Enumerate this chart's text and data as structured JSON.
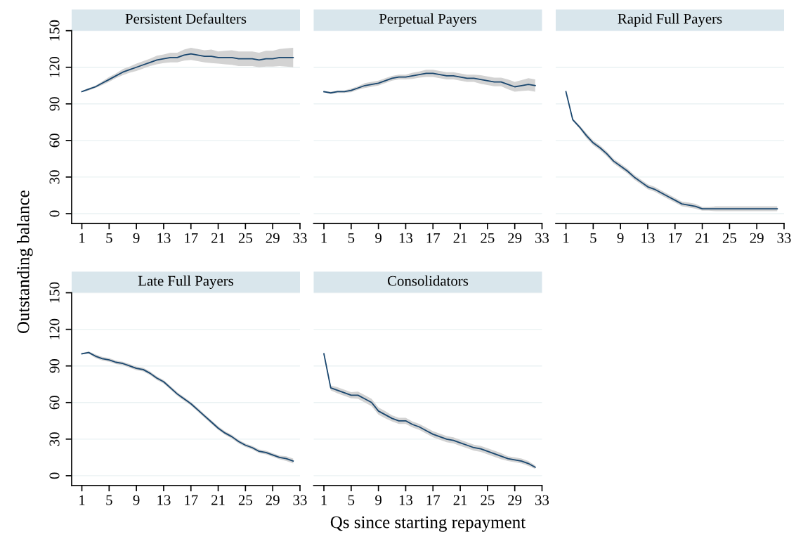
{
  "chart_data": [
    {
      "type": "line",
      "title": "Persistent Defaulters",
      "ylabel": "Outstanding balance",
      "x": [
        1,
        2,
        3,
        4,
        5,
        6,
        7,
        8,
        9,
        10,
        11,
        12,
        13,
        14,
        15,
        16,
        17,
        18,
        19,
        20,
        21,
        22,
        23,
        24,
        25,
        26,
        27,
        28,
        29,
        30,
        31,
        32
      ],
      "xlim": [
        -0.5,
        33
      ],
      "xticks": [
        1,
        5,
        9,
        13,
        17,
        21,
        25,
        29,
        33
      ],
      "ylim": [
        -8,
        150
      ],
      "yticks": [
        0,
        30,
        60,
        90,
        120,
        150
      ],
      "grid": "y",
      "series": [
        {
          "color": "#1a476f",
          "values": [
            100,
            102,
            104,
            107,
            110,
            113,
            116,
            118,
            120,
            122,
            124,
            126,
            127,
            128,
            128,
            130,
            131,
            130,
            129,
            129,
            128,
            128,
            128,
            127,
            127,
            127,
            126,
            127,
            127,
            128,
            128,
            128
          ],
          "lower": [
            99.5,
            101,
            103,
            105.5,
            108,
            111,
            113.5,
            115.5,
            117,
            119,
            121,
            122.5,
            123.5,
            124,
            124,
            125.5,
            126,
            125,
            124,
            123.5,
            123,
            122.5,
            122,
            121,
            121,
            121,
            120,
            120.5,
            120.5,
            121,
            120.5,
            120
          ],
          "upper": [
            100.5,
            103,
            105,
            108.5,
            112,
            115,
            118.5,
            120.5,
            123,
            125,
            127,
            129.5,
            130.5,
            132,
            132,
            134.5,
            136,
            135,
            134,
            134.5,
            133,
            133.5,
            134,
            133,
            133,
            133,
            132,
            133.5,
            133.5,
            135,
            135.5,
            136
          ]
        }
      ]
    },
    {
      "type": "line",
      "title": "Perpetual Payers",
      "x": [
        1,
        2,
        3,
        4,
        5,
        6,
        7,
        8,
        9,
        10,
        11,
        12,
        13,
        14,
        15,
        16,
        17,
        18,
        19,
        20,
        21,
        22,
        23,
        24,
        25,
        26,
        27,
        28,
        29,
        30,
        31,
        32
      ],
      "xlim": [
        -0.5,
        33
      ],
      "xticks": [
        1,
        5,
        9,
        13,
        17,
        21,
        25,
        29,
        33
      ],
      "ylim": [
        -8,
        150
      ],
      "yticks": [
        0,
        30,
        60,
        90,
        120,
        150
      ],
      "grid": "y",
      "tick_labels": "x",
      "series": [
        {
          "color": "#1a476f",
          "values": [
            100,
            99,
            100,
            100,
            101,
            103,
            105,
            106,
            107,
            109,
            111,
            112,
            112,
            113,
            114,
            115,
            115,
            114,
            113,
            113,
            112,
            111,
            111,
            110,
            109,
            108,
            108,
            106,
            104,
            105,
            106,
            105
          ],
          "lower": [
            99.5,
            98,
            99,
            99,
            99.5,
            101.5,
            103,
            104,
            105,
            107,
            109,
            110,
            110,
            110.5,
            111.5,
            112,
            112,
            111,
            110,
            110,
            109,
            108,
            108,
            106.5,
            105.5,
            104.5,
            104.5,
            102,
            100,
            100.5,
            101,
            100
          ],
          "upper": [
            100.5,
            100,
            101,
            101,
            102.5,
            104.5,
            107,
            108,
            109,
            111,
            113,
            114,
            114,
            115.5,
            116.5,
            118,
            118,
            117,
            116,
            116,
            115,
            114,
            114,
            113.5,
            112.5,
            111.5,
            111.5,
            110,
            108,
            109.5,
            111,
            110
          ]
        }
      ]
    },
    {
      "type": "line",
      "title": "Rapid Full Payers",
      "x": [
        1,
        2,
        3,
        4,
        5,
        6,
        7,
        8,
        9,
        10,
        11,
        12,
        13,
        14,
        15,
        16,
        17,
        18,
        19,
        20,
        21,
        22,
        23,
        24,
        25,
        26,
        27,
        28,
        29,
        30,
        31,
        32
      ],
      "xlim": [
        -0.5,
        33
      ],
      "xticks": [
        1,
        5,
        9,
        13,
        17,
        21,
        25,
        29,
        33
      ],
      "ylim": [
        -8,
        150
      ],
      "yticks": [
        0,
        30,
        60,
        90,
        120,
        150
      ],
      "grid": "y",
      "tick_labels": "x",
      "series": [
        {
          "color": "#1a476f",
          "values": [
            100,
            77,
            71,
            64,
            58,
            54,
            49,
            43,
            39,
            35,
            30,
            26,
            22,
            20,
            17,
            14,
            11,
            8,
            7,
            6,
            4,
            4,
            4,
            4,
            4,
            4,
            4,
            4,
            4,
            4,
            4,
            4
          ],
          "lower": [
            99.5,
            76,
            69.5,
            62,
            56,
            52,
            47,
            41,
            37,
            33,
            28,
            24,
            20,
            18,
            15,
            12,
            9,
            6,
            5,
            4,
            2.5,
            2.5,
            2,
            2,
            2,
            2,
            2,
            2,
            2,
            2,
            2,
            2
          ],
          "upper": [
            100.5,
            78,
            72.5,
            66,
            60,
            56,
            51,
            45,
            41,
            37,
            32,
            28,
            24,
            22,
            19,
            16,
            13,
            10,
            9,
            8,
            5.5,
            5.5,
            6,
            6,
            6,
            6,
            6,
            6,
            6,
            6,
            6,
            6
          ]
        }
      ]
    },
    {
      "type": "line",
      "title": "Late Full Payers",
      "x": [
        1,
        2,
        3,
        4,
        5,
        6,
        7,
        8,
        9,
        10,
        11,
        12,
        13,
        14,
        15,
        16,
        17,
        18,
        19,
        20,
        21,
        22,
        23,
        24,
        25,
        26,
        27,
        28,
        29,
        30,
        31,
        32
      ],
      "xlim": [
        -0.5,
        33
      ],
      "xticks": [
        1,
        5,
        9,
        13,
        17,
        21,
        25,
        29,
        33
      ],
      "ylim": [
        -8,
        150
      ],
      "yticks": [
        0,
        30,
        60,
        90,
        120,
        150
      ],
      "grid": "y",
      "series": [
        {
          "color": "#1a476f",
          "values": [
            100,
            101,
            98,
            96,
            95,
            93,
            92,
            90,
            88,
            87,
            84,
            80,
            77,
            72,
            67,
            63,
            59,
            54,
            49,
            44,
            39,
            35,
            32,
            28,
            25,
            23,
            20,
            19,
            17,
            15,
            14,
            12
          ],
          "lower": [
            99.5,
            100,
            96.5,
            94.5,
            93.5,
            91.5,
            90.5,
            88.5,
            86.5,
            85.5,
            82.5,
            78.5,
            75.5,
            70.5,
            65.5,
            61.5,
            57.5,
            52.5,
            47.5,
            42.5,
            37.5,
            33.5,
            30.5,
            26.5,
            23.5,
            21.5,
            18.5,
            17.5,
            15.5,
            13.5,
            12,
            10
          ],
          "upper": [
            100.5,
            102,
            99.5,
            97.5,
            96.5,
            94.5,
            93.5,
            91.5,
            89.5,
            88.5,
            85.5,
            81.5,
            78.5,
            73.5,
            68.5,
            64.5,
            60.5,
            55.5,
            50.5,
            45.5,
            40.5,
            36.5,
            33.5,
            29.5,
            26.5,
            24.5,
            21.5,
            20.5,
            18.5,
            16.5,
            16,
            14
          ]
        }
      ]
    },
    {
      "type": "line",
      "title": "Consolidators",
      "xlabel": "Qs since starting repayment",
      "x": [
        1,
        2,
        3,
        4,
        5,
        6,
        7,
        8,
        9,
        10,
        11,
        12,
        13,
        14,
        15,
        16,
        17,
        18,
        19,
        20,
        21,
        22,
        23,
        24,
        25,
        26,
        27,
        28,
        29,
        30,
        31,
        32
      ],
      "xlim": [
        -0.5,
        33
      ],
      "xticks": [
        1,
        5,
        9,
        13,
        17,
        21,
        25,
        29,
        33
      ],
      "ylim": [
        -8,
        150
      ],
      "yticks": [
        0,
        30,
        60,
        90,
        120,
        150
      ],
      "grid": "y",
      "tick_labels": "x",
      "series": [
        {
          "color": "#1a476f",
          "values": [
            100,
            72,
            70,
            68,
            66,
            66,
            63,
            60,
            53,
            50,
            47,
            45,
            45,
            42,
            40,
            37,
            34,
            32,
            30,
            29,
            27,
            25,
            23,
            22,
            20,
            18,
            16,
            14,
            13,
            12,
            10,
            7
          ],
          "lower": [
            99.5,
            70,
            67.5,
            65.5,
            63.5,
            63,
            60,
            57,
            50,
            47,
            44.5,
            42.5,
            42.5,
            39.5,
            37.5,
            34.5,
            31.5,
            29.5,
            27.5,
            26.5,
            24.5,
            22.5,
            20.5,
            19.5,
            17.5,
            15.5,
            13.5,
            12,
            11,
            10,
            8,
            5.5
          ],
          "upper": [
            100.5,
            74,
            72.5,
            70.5,
            68.5,
            69,
            66,
            63,
            56,
            53,
            49.5,
            47.5,
            47.5,
            44.5,
            42.5,
            39.5,
            36.5,
            34.5,
            32.5,
            31.5,
            29.5,
            27.5,
            25.5,
            24.5,
            22.5,
            20.5,
            18.5,
            16,
            15,
            14,
            12,
            8.5
          ]
        }
      ]
    }
  ]
}
